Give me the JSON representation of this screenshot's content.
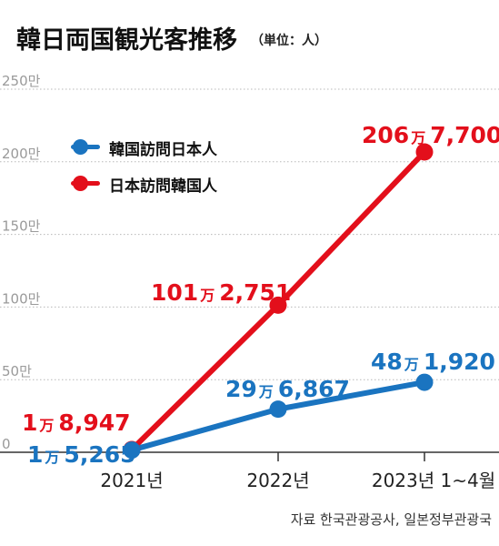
{
  "title": "韓日両国観光客推移",
  "unit": "（単位：人）",
  "source": "자료 한국관광공사, 일본정부관광국",
  "colors": {
    "blue": "#1a74c0",
    "red": "#e30f1b",
    "axis": "#333333",
    "grid": "#b8b8b8",
    "tick": "#9a9a9a"
  },
  "chart_data": {
    "type": "line",
    "categories": [
      "2021년",
      "2022년",
      "2023년 1~4월"
    ],
    "ylim": [
      0,
      2500000
    ],
    "grid": true,
    "y_ticks": [
      {
        "value": 0,
        "label": "0"
      },
      {
        "value": 500000,
        "label": "50만"
      },
      {
        "value": 1000000,
        "label": "100만"
      },
      {
        "value": 1500000,
        "label": "150만"
      },
      {
        "value": 2000000,
        "label": "200만"
      },
      {
        "value": 2500000,
        "label": "250만"
      }
    ],
    "legend_position": "top-left",
    "series": [
      {
        "name": "韓国訪問日本人",
        "color": "#1a74c0",
        "values": [
          15265,
          296867,
          481920
        ],
        "labels": [
          {
            "man": "1",
            "unit": "万",
            "rest": "5,265"
          },
          {
            "man": "29",
            "unit": "万",
            "rest": "6,867"
          },
          {
            "man": "48",
            "unit": "万",
            "rest": "1,920"
          }
        ]
      },
      {
        "name": "日本訪問韓国人",
        "color": "#e30f1b",
        "values": [
          18947,
          1012751,
          2067700
        ],
        "labels": [
          {
            "man": "1",
            "unit": "万",
            "rest": "8,947"
          },
          {
            "man": "101",
            "unit": "万",
            "rest": "2,751"
          },
          {
            "man": "206",
            "unit": "万",
            "rest": "7,700"
          }
        ]
      }
    ]
  }
}
